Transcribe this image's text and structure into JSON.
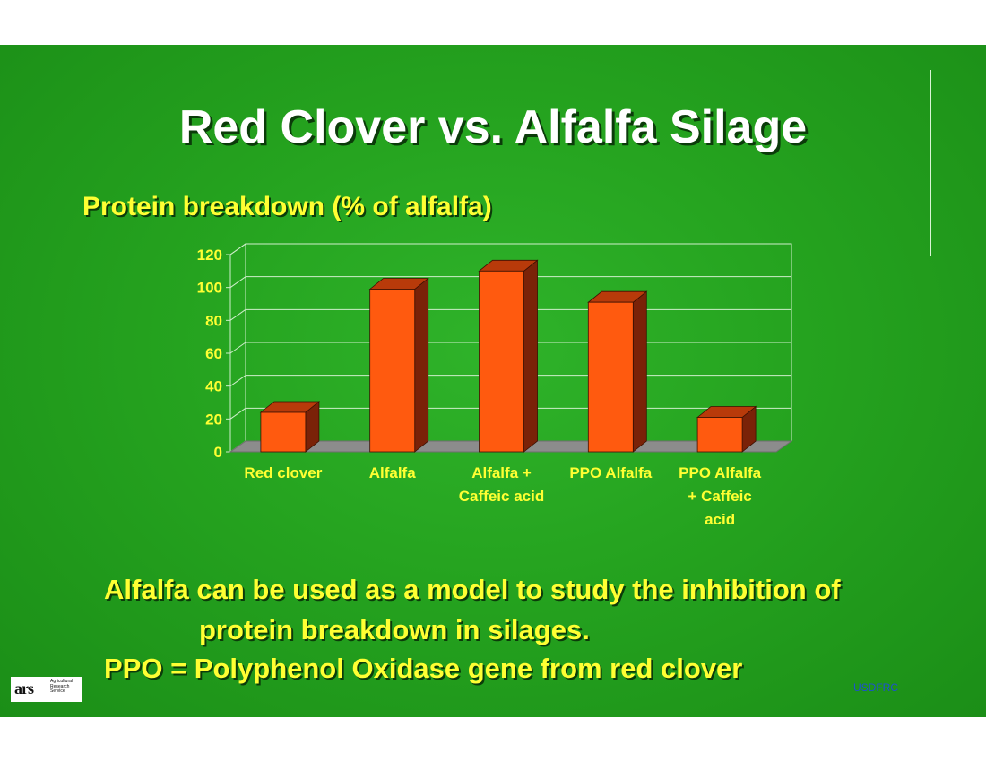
{
  "slide": {
    "title": "Red Clover vs. Alfalfa Silage",
    "bullets": [
      "Alfalfa can be used as a model to study the inhibition of",
      "protein breakdown in silages.",
      "PPO = Polyphenol Oxidase gene from red clover"
    ],
    "footer": "USDFRC",
    "logo": {
      "mark": "ars",
      "lines": [
        "Agricultural",
        "Research",
        "Service"
      ]
    }
  },
  "colors": {
    "background": "#25a31f",
    "bar_front": "#ff5a0f",
    "bar_side": "#7a2208",
    "bar_top": "#b83a0a",
    "floor": "#8c8c8c",
    "axis_text": "#ffff33"
  },
  "chart_data": {
    "type": "bar",
    "title": "Protein breakdown (% of alfalfa)",
    "categories": [
      "Red clover",
      "Alfalfa",
      "Alfalfa + Caffeic acid",
      "PPO Alfalfa",
      "PPO Alfalfa + Caffeic acid"
    ],
    "category_lines": [
      [
        "Red clover"
      ],
      [
        "Alfalfa"
      ],
      [
        "Alfalfa +",
        "Caffeic acid"
      ],
      [
        "PPO Alfalfa"
      ],
      [
        "PPO Alfalfa",
        "+ Caffeic",
        "acid"
      ]
    ],
    "values": [
      24,
      99,
      110,
      91,
      21
    ],
    "ylim": [
      0,
      120
    ],
    "yticks": [
      0,
      20,
      40,
      60,
      80,
      100,
      120
    ],
    "grid": true,
    "legend": "none",
    "style": "3d"
  }
}
